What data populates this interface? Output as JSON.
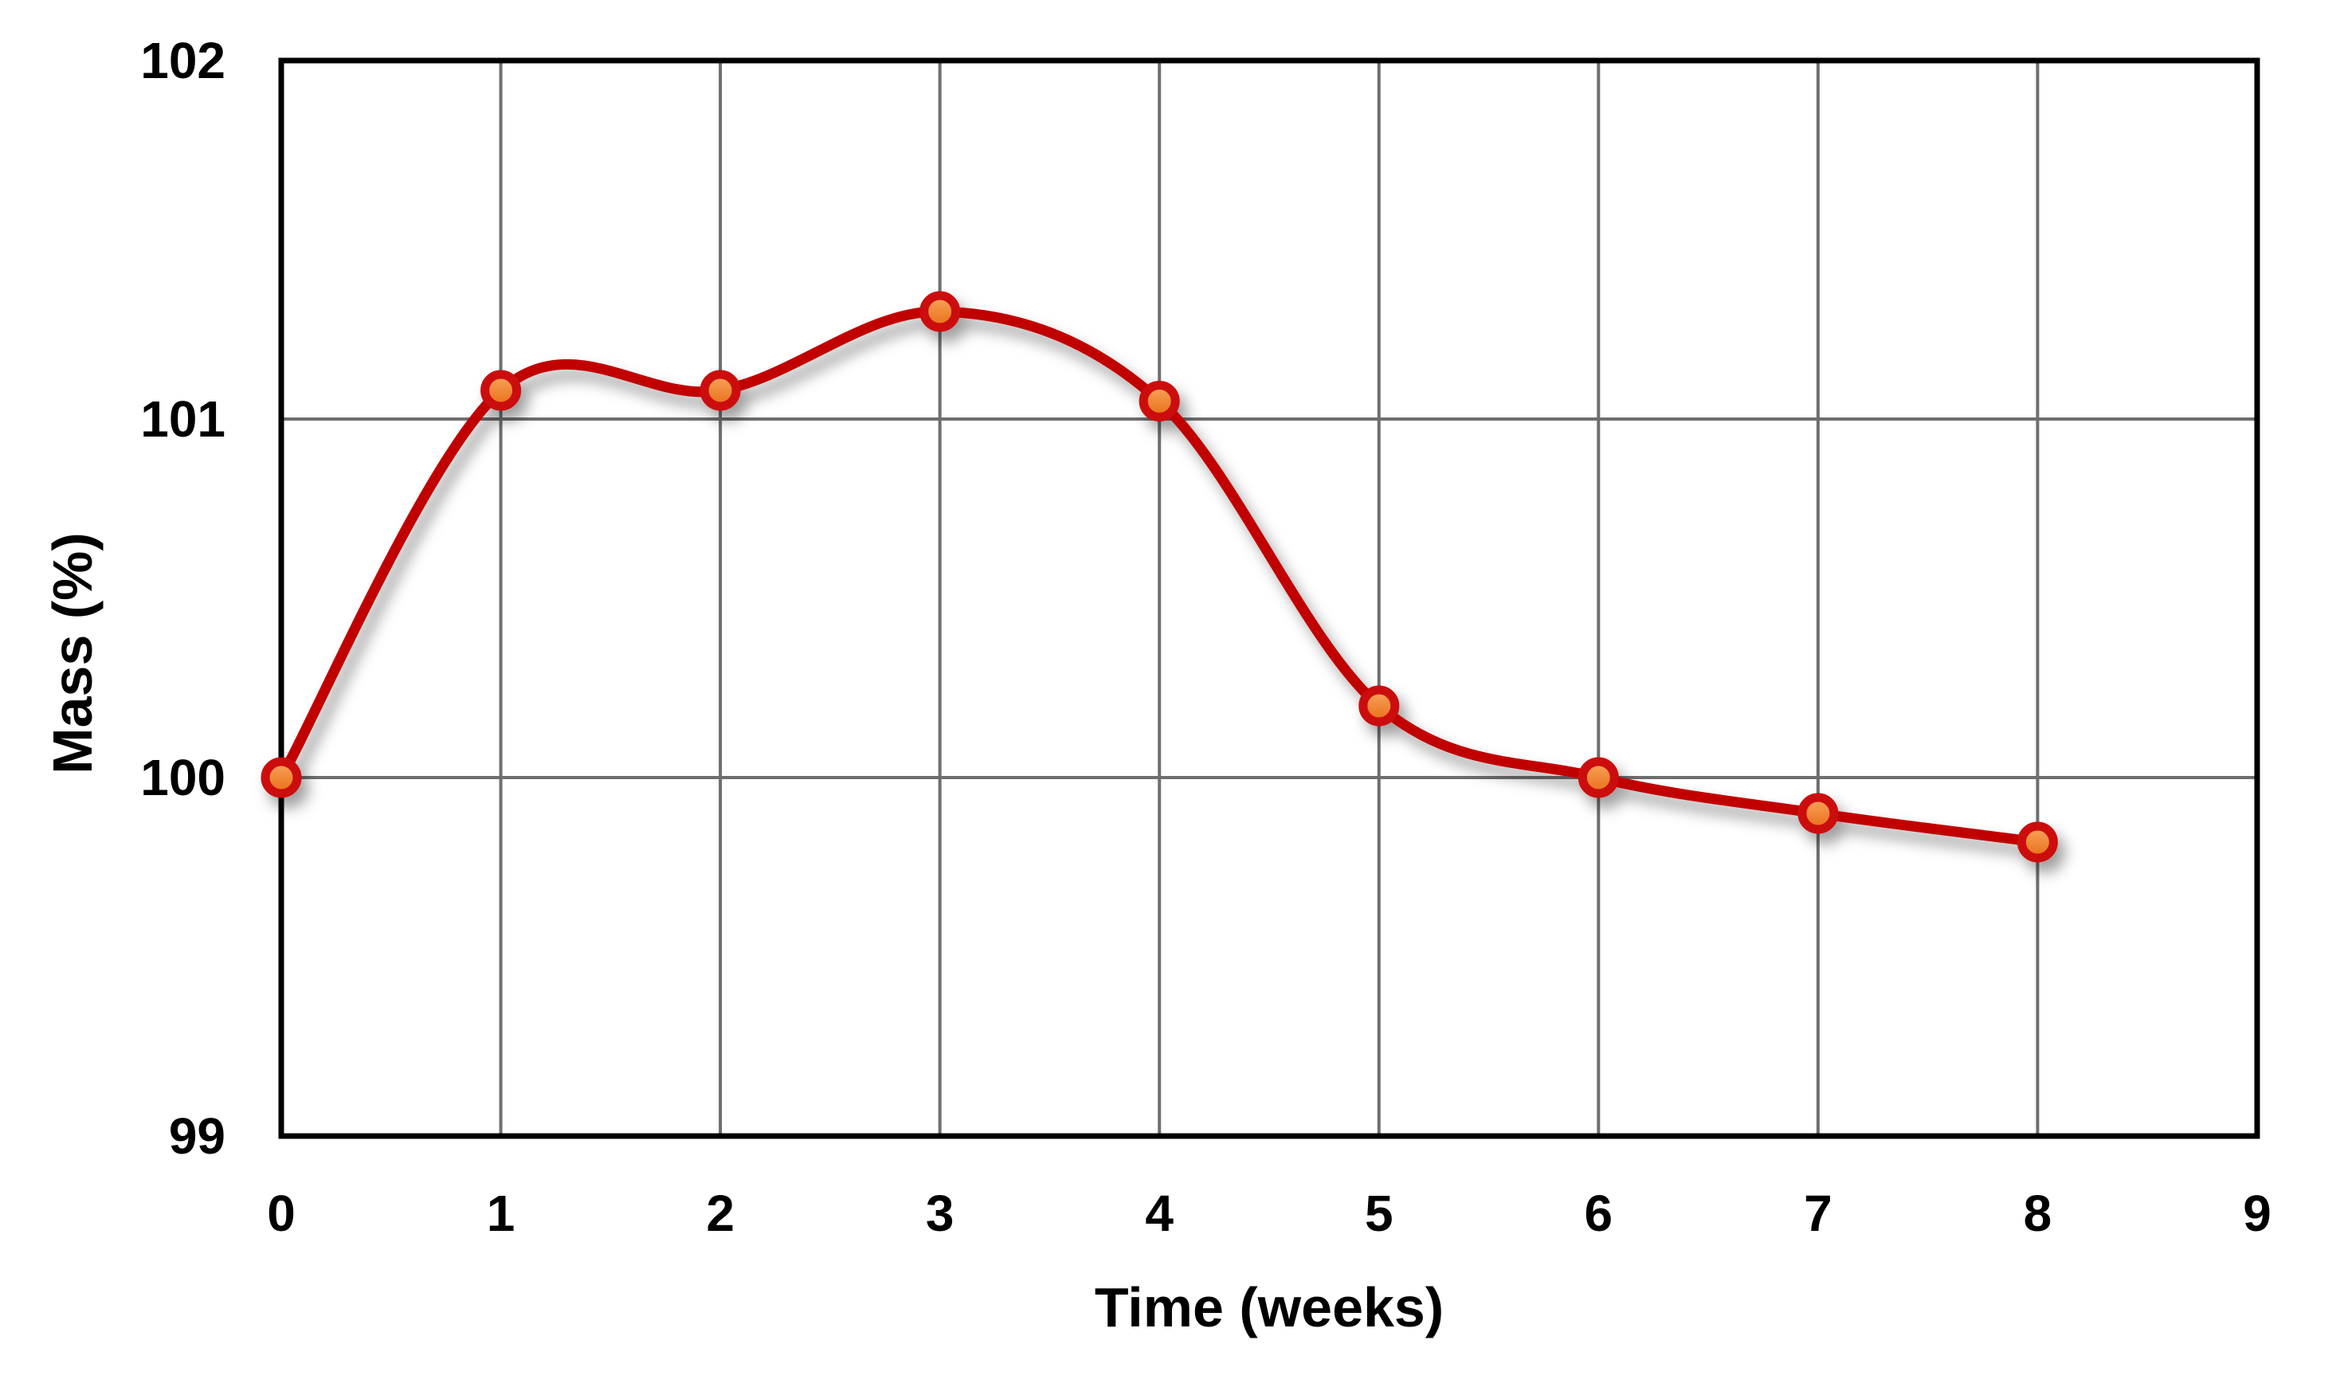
{
  "chart_data": {
    "type": "line",
    "title": "",
    "xlabel": "Time (weeks)",
    "ylabel": "Mass (%)",
    "x": [
      0,
      1,
      2,
      3,
      4,
      5,
      6,
      7,
      8
    ],
    "series": [
      {
        "name": "Mass",
        "values": [
          100.0,
          101.08,
          101.08,
          101.3,
          101.05,
          100.2,
          100.0,
          99.9,
          99.82
        ]
      }
    ],
    "xlim": [
      0,
      9
    ],
    "ylim": [
      99,
      102
    ],
    "xticks": [
      0,
      1,
      2,
      3,
      4,
      5,
      6,
      7,
      8,
      9
    ],
    "yticks": [
      99,
      100,
      101,
      102
    ],
    "grid": true,
    "legend": false,
    "smooth": true,
    "marker": "circle",
    "colors": {
      "line": "#C10505",
      "marker_edge": "#CC0707",
      "marker_fill_top": "#F9A55E",
      "marker_fill_bottom": "#E86E16",
      "gridline": "#6E6E6E",
      "axis_border": "#000000",
      "text": "#000000",
      "background": "#FFFFFF"
    }
  }
}
